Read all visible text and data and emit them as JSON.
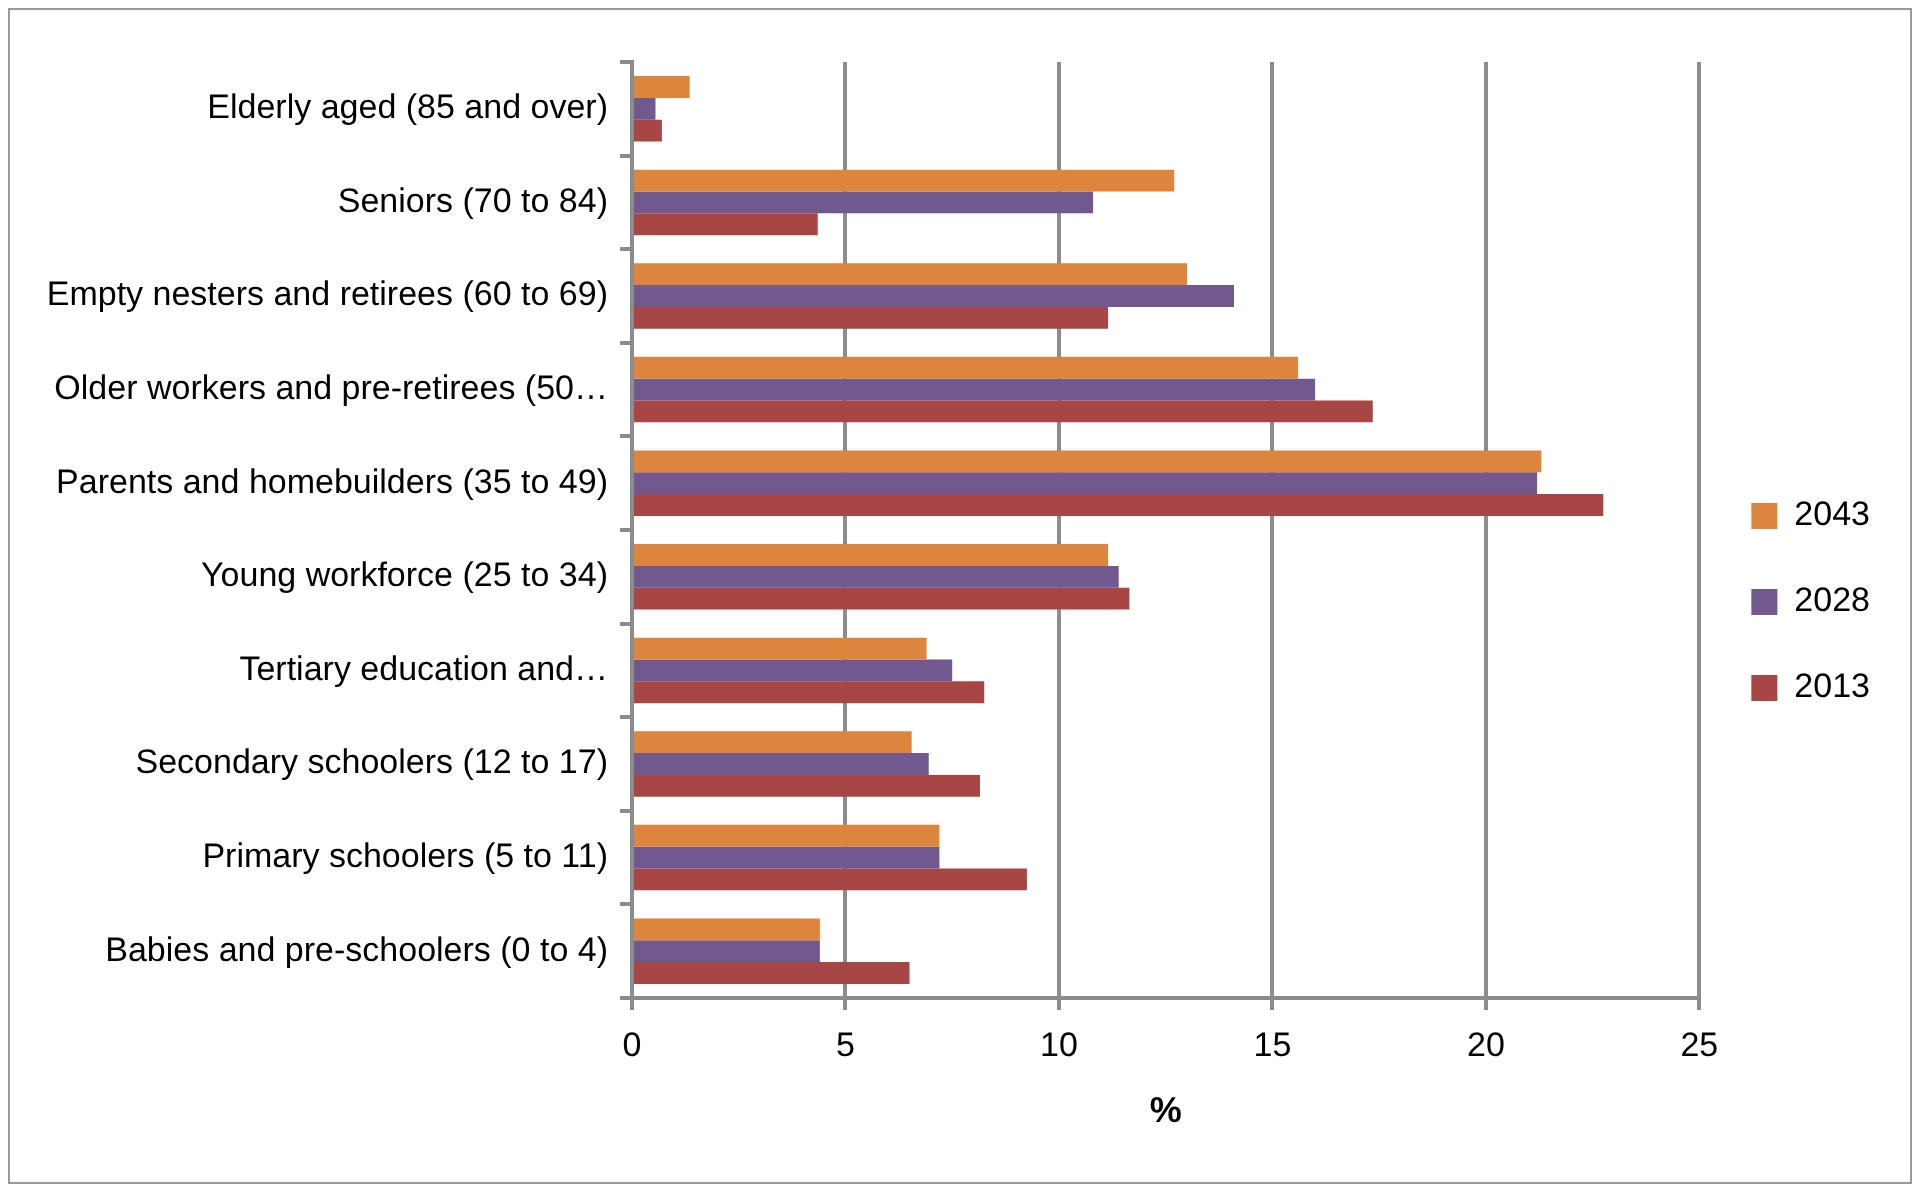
{
  "chart_data": {
    "type": "bar",
    "orientation": "horizontal",
    "xlabel": "%",
    "categories": [
      "Elderly aged (85 and over)",
      "Seniors (70 to 84)",
      "Empty nesters and retirees (60 to 69)",
      "Older workers and pre-retirees (50…",
      "Parents and homebuilders (35 to 49)",
      "Young workforce (25 to 34)",
      "Tertiary education and…",
      "Secondary schoolers (12 to 17)",
      "Primary schoolers (5 to 11)",
      "Babies and pre-schoolers (0 to 4)"
    ],
    "series": [
      {
        "name": "2043",
        "color": "#dd843d",
        "values": [
          1.35,
          12.7,
          13.0,
          15.6,
          21.3,
          11.15,
          6.9,
          6.55,
          7.2,
          4.4
        ]
      },
      {
        "name": "2028",
        "color": "#71588f",
        "values": [
          0.55,
          10.8,
          14.1,
          16.0,
          21.2,
          11.4,
          7.5,
          6.95,
          7.2,
          4.4
        ]
      },
      {
        "name": "2013",
        "color": "#a84645",
        "values": [
          0.7,
          4.35,
          11.15,
          17.35,
          22.75,
          11.65,
          8.25,
          8.15,
          9.25,
          6.5
        ]
      }
    ],
    "xlim": [
      0,
      25
    ],
    "xticks": [
      0,
      5,
      10,
      15,
      20,
      25
    ],
    "grid": "x",
    "legend": "right"
  }
}
